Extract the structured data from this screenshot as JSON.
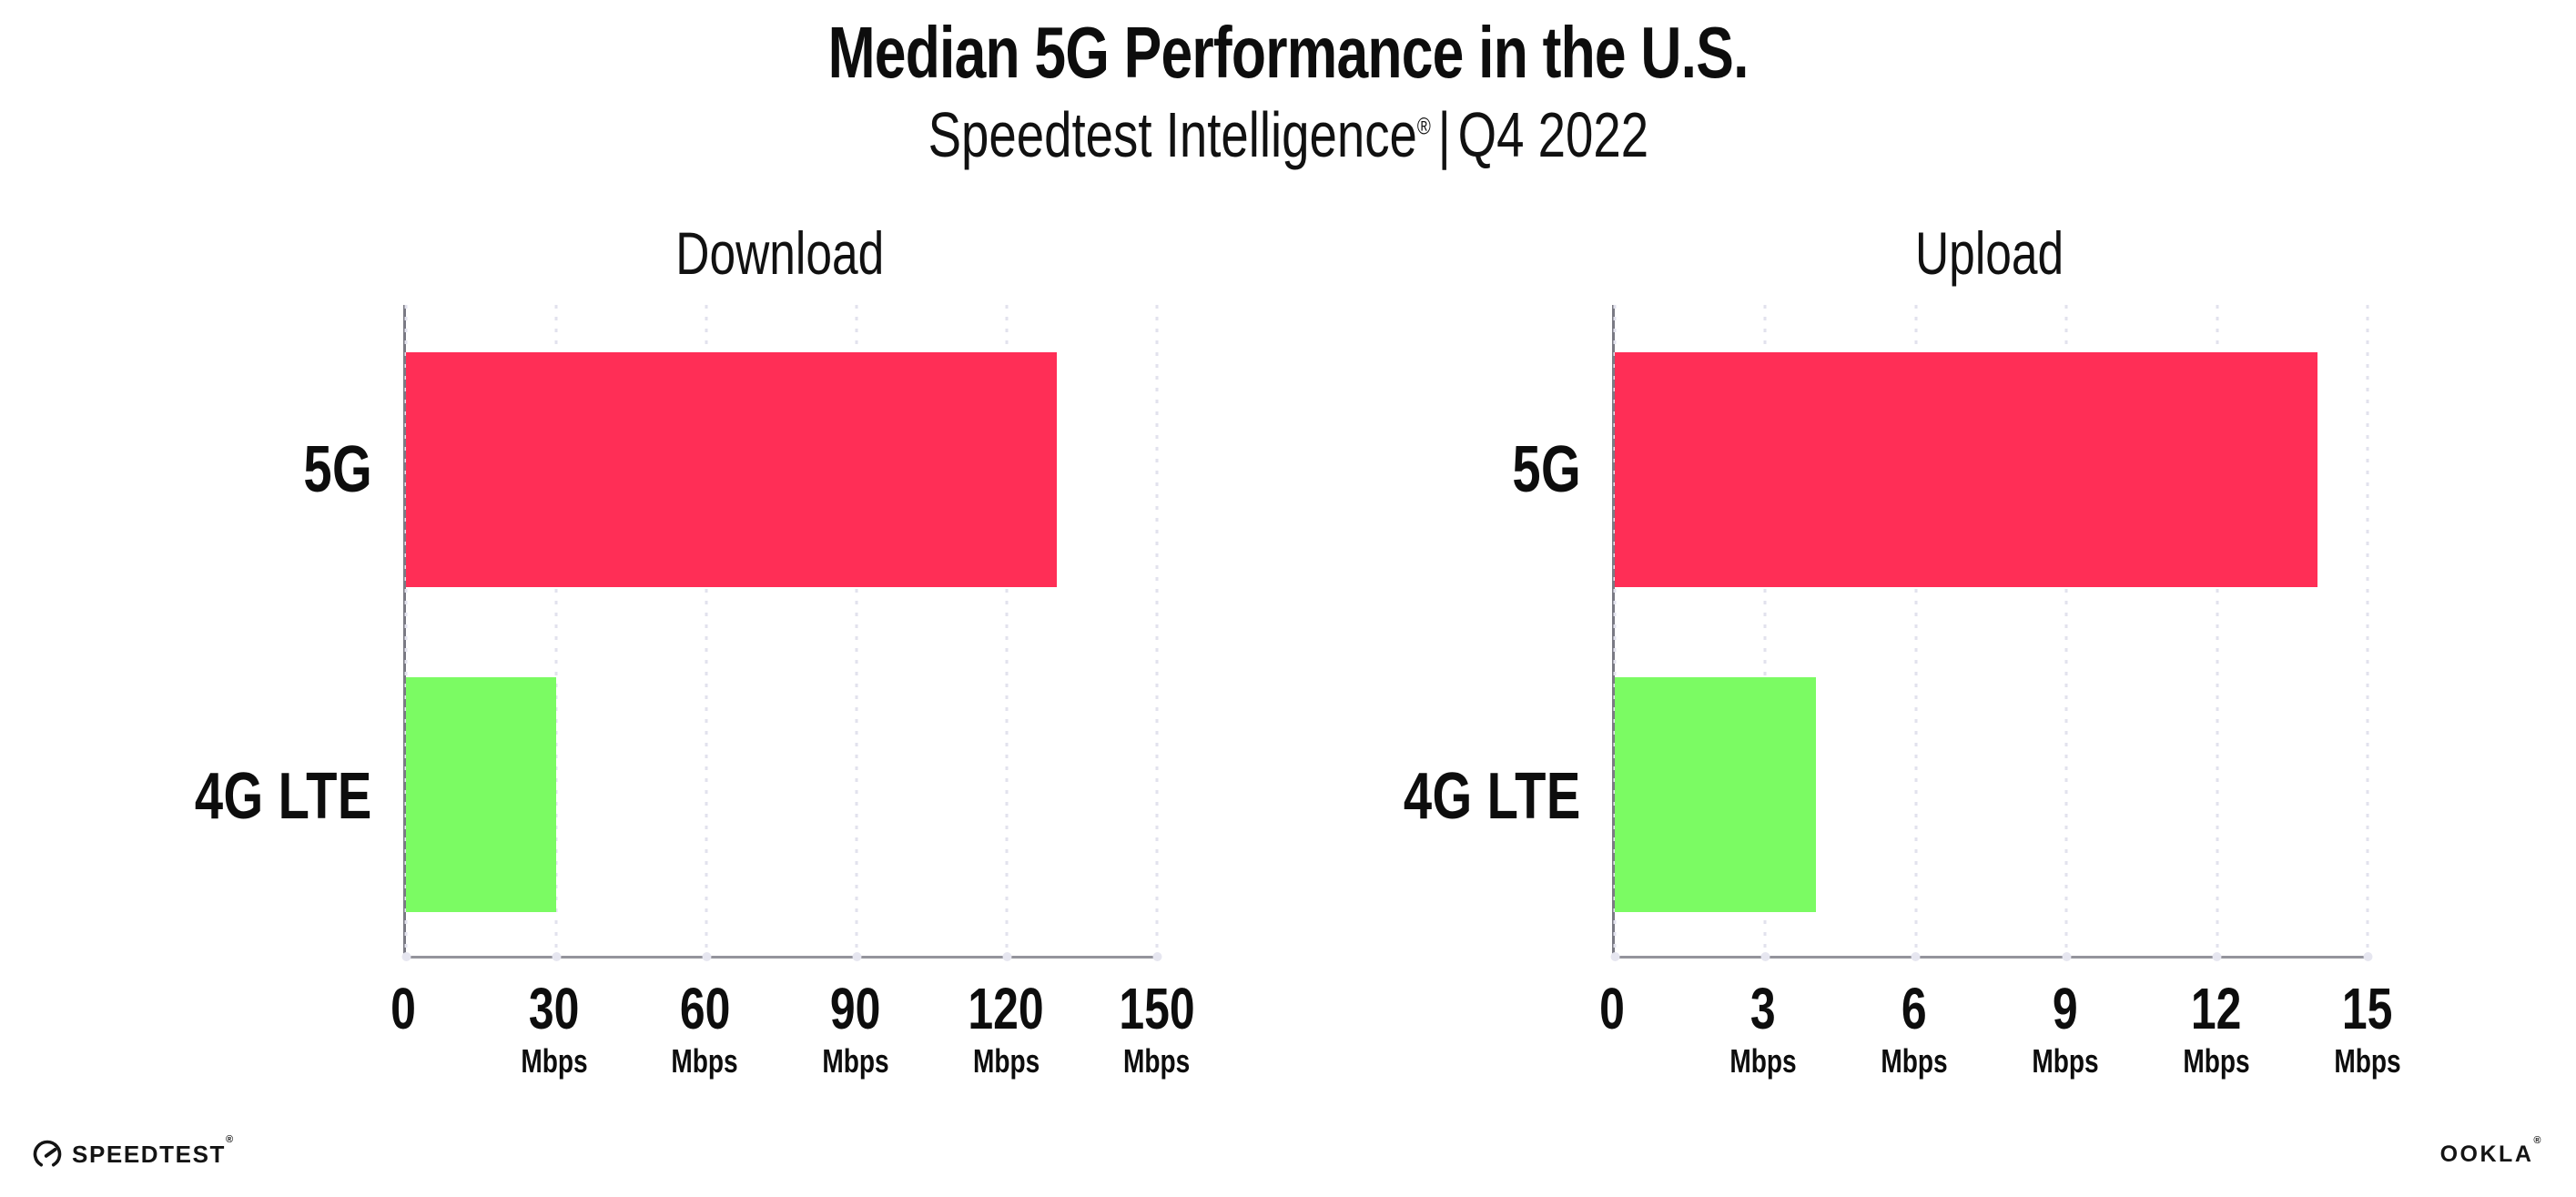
{
  "header": {
    "title": "Median 5G Performance in the U.S.",
    "subtitle_brand": "Speedtest Intelligence",
    "subtitle_reg": "®",
    "subtitle_separator": "|",
    "subtitle_period": "Q4 2022"
  },
  "chart_data": [
    {
      "type": "bar",
      "orientation": "horizontal",
      "title": "Download",
      "categories": [
        "5G",
        "4G LTE"
      ],
      "values": [
        130,
        30
      ],
      "unit": "Mbps",
      "xlim": [
        0,
        150
      ],
      "xticks": [
        0,
        30,
        60,
        90,
        120,
        150
      ],
      "bar_colors": [
        "#FF2E56",
        "#7BFB63"
      ],
      "grid": "dotted vertical gridlines at each tick",
      "legend": "none"
    },
    {
      "type": "bar",
      "orientation": "horizontal",
      "title": "Upload",
      "categories": [
        "5G",
        "4G LTE"
      ],
      "values": [
        14,
        4
      ],
      "unit": "Mbps",
      "xlim": [
        0,
        15
      ],
      "xticks": [
        0,
        3,
        6,
        9,
        12,
        15
      ],
      "bar_colors": [
        "#FF2E56",
        "#7BFB63"
      ],
      "grid": "dotted vertical gridlines at each tick",
      "legend": "none"
    }
  ],
  "colors": {
    "bar_5g": "#FF2E56",
    "bar_4g_lte": "#7BFB63",
    "spine_left": "#7a7a84",
    "spine_bottom": "#94949c",
    "gridline": "#e2e2ed",
    "text": "#0d0d0d",
    "background": "#ffffff"
  },
  "footer": {
    "speedtest_label": "SPEEDTEST",
    "speedtest_mark": "®",
    "ookla_label": "OOKLA",
    "ookla_mark": "®"
  }
}
